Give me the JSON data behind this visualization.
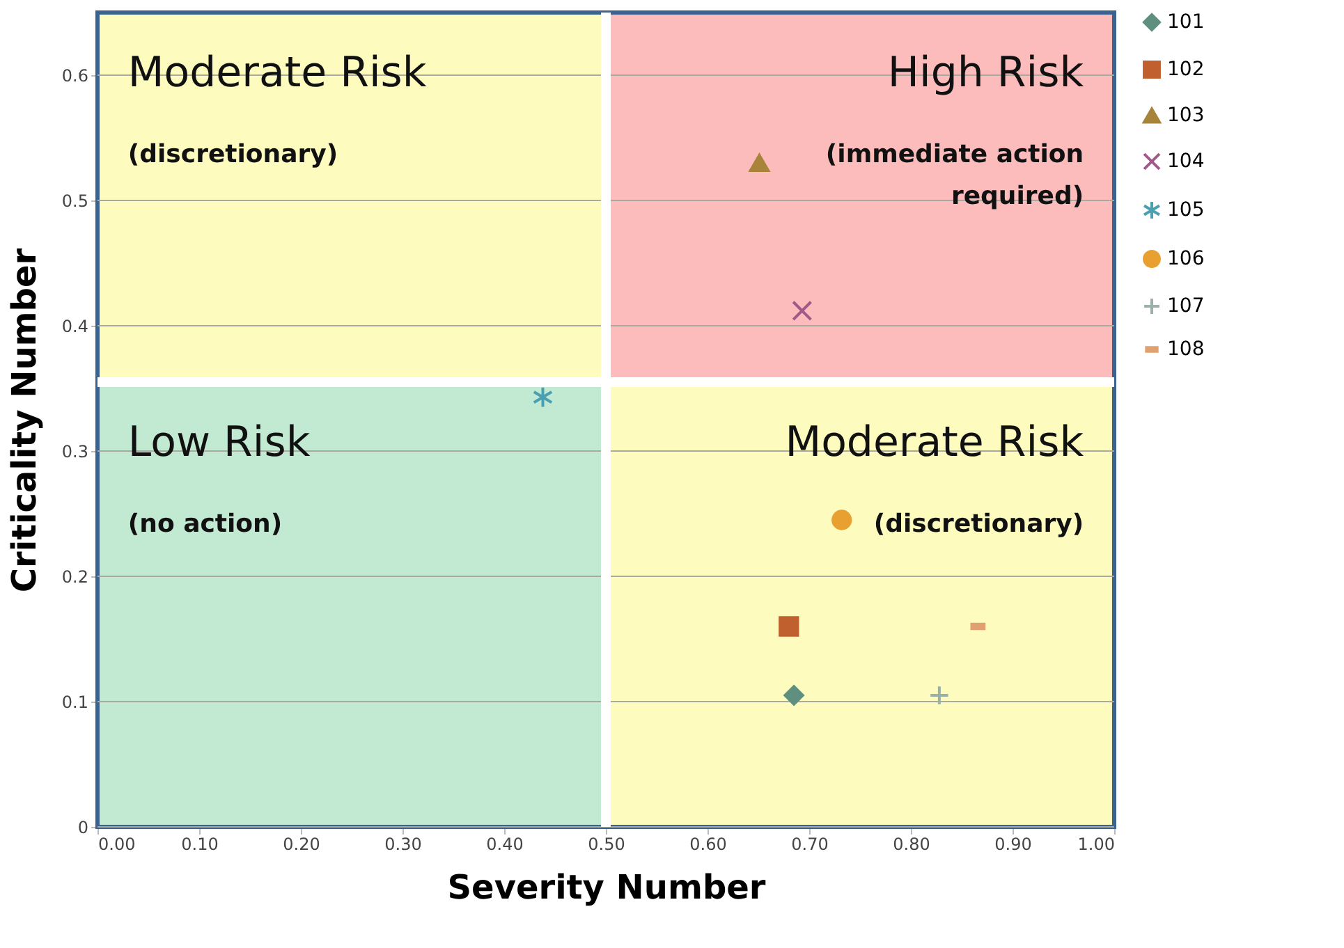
{
  "chart_data": {
    "type": "scatter",
    "xlabel": "Severity Number",
    "ylabel": "Criticality Number",
    "xlim": [
      0,
      1
    ],
    "ylim": [
      0,
      0.65
    ],
    "xticks": [
      {
        "value": 0,
        "label": "0.00"
      },
      {
        "value": 0.1,
        "label": "0.10"
      },
      {
        "value": 0.2,
        "label": "0.20"
      },
      {
        "value": 0.3,
        "label": "0.30"
      },
      {
        "value": 0.4,
        "label": "0.40"
      },
      {
        "value": 0.5,
        "label": "0.50"
      },
      {
        "value": 0.6,
        "label": "0.60"
      },
      {
        "value": 0.7,
        "label": "0.70"
      },
      {
        "value": 0.8,
        "label": "0.80"
      },
      {
        "value": 0.9,
        "label": "0.90"
      },
      {
        "value": 1,
        "label": "1.00"
      }
    ],
    "yticks": [
      0,
      0.1,
      0.2,
      0.3,
      0.4,
      0.5,
      0.6
    ],
    "grid": "y",
    "legend": "right",
    "ref_lines": [
      {
        "axis": "x",
        "value": 0.5,
        "color": "#ffffff"
      },
      {
        "axis": "y",
        "value": 0.355,
        "color": "#ffffff"
      }
    ],
    "annotations": [
      "Moderate Risk",
      "(discretionary)",
      "High Risk",
      "(immediate action\nrequired)",
      "Low Risk",
      "(no action)",
      "Moderate Risk",
      "(discretionary)"
    ],
    "series": [
      {
        "name": "101",
        "color": "#5e8f7f",
        "marker": "diamond",
        "x": [
          0.685
        ],
        "values": [
          0.105
        ]
      },
      {
        "name": "102",
        "color": "#c0602e",
        "marker": "square",
        "x": [
          0.68
        ],
        "values": [
          0.16
        ]
      },
      {
        "name": "103",
        "color": "#a8843a",
        "marker": "triangle",
        "x": [
          0.651
        ],
        "values": [
          0.53
        ]
      },
      {
        "name": "104",
        "color": "#a05a8a",
        "marker": "cross",
        "x": [
          0.693
        ],
        "values": [
          0.412
        ]
      },
      {
        "name": "105",
        "color": "#4a9fb0",
        "marker": "cross",
        "x": [
          0.438
        ],
        "values": [
          0.343
        ]
      },
      {
        "name": "106",
        "color": "#e8a030",
        "marker": "circle",
        "x": [
          0.732
        ],
        "values": [
          0.245
        ]
      },
      {
        "name": "107",
        "color": "#9ab0a8",
        "marker": "cross",
        "x": [
          0.828
        ],
        "values": [
          0.105
        ]
      },
      {
        "name": "108",
        "color": "#e0a070",
        "x": [
          0.866
        ],
        "values": [
          0.16
        ]
      }
    ]
  }
}
